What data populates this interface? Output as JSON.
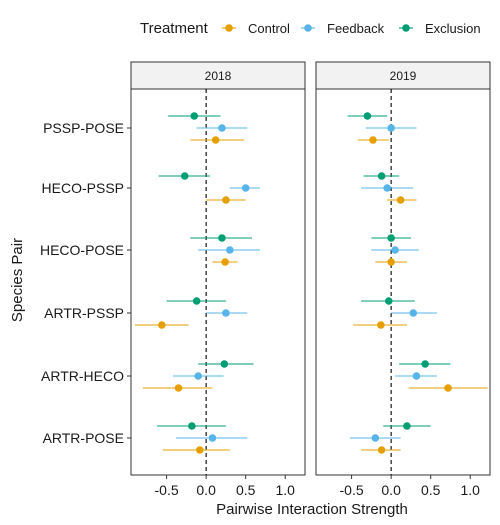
{
  "chart_data": {
    "type": "scatter",
    "subtype": "dot-and-whisker, faceted",
    "xlabel": "Pairwise Interaction Strength",
    "ylabel": "Species Pair",
    "xlim": [
      -0.95,
      1.25
    ],
    "xticks": [
      -0.5,
      0.0,
      0.5,
      1.0
    ],
    "xtick_labels": [
      "-0.5",
      "0.0",
      "0.5",
      "1.0"
    ],
    "reference_line_x": 0,
    "facets": [
      "2018",
      "2019"
    ],
    "categories": [
      "PSSP-POSE",
      "HECO-PSSP",
      "HECO-POSE",
      "ARTR-PSSP",
      "ARTR-HECO",
      "ARTR-POSE"
    ],
    "legend": {
      "title": "Treatment",
      "position": "top"
    },
    "series": [
      {
        "name": "Control",
        "color": "#E69F00",
        "points": {
          "2018": [
            {
              "y": "PSSP-POSE",
              "x": 0.12,
              "lo": -0.2,
              "hi": 0.48
            },
            {
              "y": "HECO-PSSP",
              "x": 0.25,
              "lo": 0.0,
              "hi": 0.5
            },
            {
              "y": "HECO-POSE",
              "x": 0.24,
              "lo": 0.08,
              "hi": 0.4
            },
            {
              "y": "ARTR-PSSP",
              "x": -0.56,
              "lo": -0.9,
              "hi": -0.22
            },
            {
              "y": "ARTR-HECO",
              "x": -0.35,
              "lo": -0.8,
              "hi": 0.08
            },
            {
              "y": "ARTR-POSE",
              "x": -0.08,
              "lo": -0.55,
              "hi": 0.3
            }
          ],
          "2019": [
            {
              "y": "PSSP-POSE",
              "x": -0.23,
              "lo": -0.42,
              "hi": -0.03
            },
            {
              "y": "HECO-PSSP",
              "x": 0.12,
              "lo": -0.05,
              "hi": 0.32
            },
            {
              "y": "HECO-POSE",
              "x": 0.0,
              "lo": -0.2,
              "hi": 0.2
            },
            {
              "y": "ARTR-PSSP",
              "x": -0.13,
              "lo": -0.48,
              "hi": 0.2
            },
            {
              "y": "ARTR-HECO",
              "x": 0.72,
              "lo": 0.22,
              "hi": 1.22
            },
            {
              "y": "ARTR-POSE",
              "x": -0.12,
              "lo": -0.38,
              "hi": 0.12
            }
          ]
        }
      },
      {
        "name": "Feedback",
        "color": "#56B4E9",
        "points": {
          "2018": [
            {
              "y": "PSSP-POSE",
              "x": 0.2,
              "lo": -0.12,
              "hi": 0.52
            },
            {
              "y": "HECO-PSSP",
              "x": 0.5,
              "lo": 0.3,
              "hi": 0.68
            },
            {
              "y": "HECO-POSE",
              "x": 0.3,
              "lo": -0.1,
              "hi": 0.68
            },
            {
              "y": "ARTR-PSSP",
              "x": 0.25,
              "lo": 0.0,
              "hi": 0.52
            },
            {
              "y": "ARTR-HECO",
              "x": -0.1,
              "lo": -0.42,
              "hi": 0.22
            },
            {
              "y": "ARTR-POSE",
              "x": 0.08,
              "lo": -0.38,
              "hi": 0.52
            }
          ],
          "2019": [
            {
              "y": "PSSP-POSE",
              "x": 0.0,
              "lo": -0.32,
              "hi": 0.32
            },
            {
              "y": "HECO-PSSP",
              "x": -0.05,
              "lo": -0.38,
              "hi": 0.28
            },
            {
              "y": "HECO-POSE",
              "x": 0.05,
              "lo": -0.25,
              "hi": 0.35
            },
            {
              "y": "ARTR-PSSP",
              "x": 0.28,
              "lo": 0.0,
              "hi": 0.58
            },
            {
              "y": "ARTR-HECO",
              "x": 0.32,
              "lo": 0.05,
              "hi": 0.58
            },
            {
              "y": "ARTR-POSE",
              "x": -0.2,
              "lo": -0.52,
              "hi": 0.12
            }
          ]
        }
      },
      {
        "name": "Exclusion",
        "color": "#009E73",
        "points": {
          "2018": [
            {
              "y": "PSSP-POSE",
              "x": -0.15,
              "lo": -0.48,
              "hi": 0.18
            },
            {
              "y": "HECO-PSSP",
              "x": -0.27,
              "lo": -0.6,
              "hi": 0.05
            },
            {
              "y": "HECO-POSE",
              "x": 0.2,
              "lo": -0.2,
              "hi": 0.58
            },
            {
              "y": "ARTR-PSSP",
              "x": -0.12,
              "lo": -0.5,
              "hi": 0.25
            },
            {
              "y": "ARTR-HECO",
              "x": 0.23,
              "lo": -0.1,
              "hi": 0.6
            },
            {
              "y": "ARTR-POSE",
              "x": -0.18,
              "lo": -0.62,
              "hi": 0.25
            }
          ],
          "2019": [
            {
              "y": "PSSP-POSE",
              "x": -0.3,
              "lo": -0.55,
              "hi": -0.05
            },
            {
              "y": "HECO-PSSP",
              "x": -0.12,
              "lo": -0.35,
              "hi": 0.1
            },
            {
              "y": "HECO-POSE",
              "x": 0.0,
              "lo": -0.25,
              "hi": 0.25
            },
            {
              "y": "ARTR-PSSP",
              "x": -0.03,
              "lo": -0.38,
              "hi": 0.3
            },
            {
              "y": "ARTR-HECO",
              "x": 0.43,
              "lo": 0.1,
              "hi": 0.75
            },
            {
              "y": "ARTR-POSE",
              "x": 0.2,
              "lo": -0.1,
              "hi": 0.5
            }
          ]
        }
      }
    ]
  }
}
